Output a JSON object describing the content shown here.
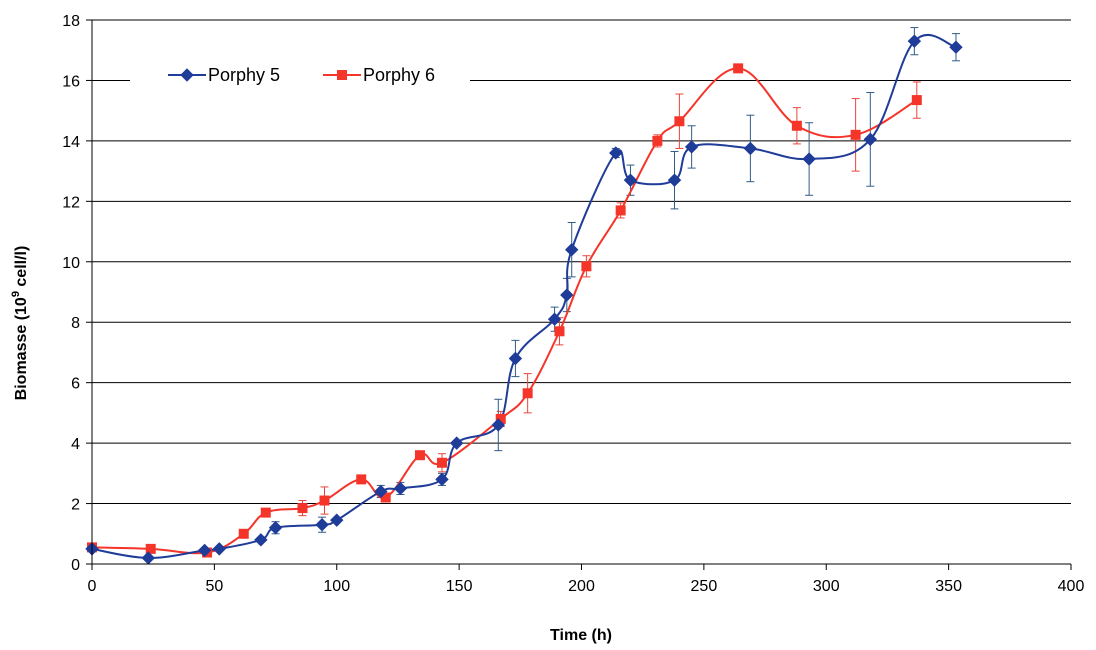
{
  "chart_data": {
    "type": "line",
    "title": "",
    "xlabel": "Time (h)",
    "ylabel_main": "Biomasse (10",
    "ylabel_sup": "9",
    "ylabel_rest": " cell/l)",
    "xlim": [
      0,
      400
    ],
    "ylim": [
      0,
      18
    ],
    "xticks": [
      "0",
      "50",
      "100",
      "150",
      "200",
      "250",
      "300",
      "350",
      "400"
    ],
    "yticks": [
      "0",
      "2",
      "4",
      "6",
      "8",
      "10",
      "12",
      "14",
      "16",
      "18"
    ],
    "grid": "horizontal",
    "legend_position": "top-left",
    "series": [
      {
        "name": "Porphy 5",
        "color": "#1F3C99",
        "marker": "diamond",
        "points": [
          {
            "x": 0,
            "y": 0.5
          },
          {
            "x": 23,
            "y": 0.2
          },
          {
            "x": 46,
            "y": 0.45
          },
          {
            "x": 52,
            "y": 0.5
          },
          {
            "x": 69,
            "y": 0.8
          },
          {
            "x": 75,
            "y": 1.2,
            "err": 0.2
          },
          {
            "x": 94,
            "y": 1.3,
            "err": 0.25
          },
          {
            "x": 100,
            "y": 1.45
          },
          {
            "x": 118,
            "y": 2.4,
            "err": 0.2
          },
          {
            "x": 126,
            "y": 2.5,
            "err": 0.2
          },
          {
            "x": 143,
            "y": 2.8,
            "err": 0.2
          },
          {
            "x": 149,
            "y": 4.0
          },
          {
            "x": 166,
            "y": 4.6,
            "err": 0.85
          },
          {
            "x": 173,
            "y": 6.8,
            "err": 0.6
          },
          {
            "x": 189,
            "y": 8.1,
            "err": 0.4
          },
          {
            "x": 194,
            "y": 8.9,
            "err": 0.55
          },
          {
            "x": 196,
            "y": 10.4,
            "err": 0.9
          },
          {
            "x": 214,
            "y": 13.6,
            "err": 0.15
          },
          {
            "x": 220,
            "y": 12.7,
            "err": 0.5
          },
          {
            "x": 238,
            "y": 12.7,
            "err": 0.95
          },
          {
            "x": 245,
            "y": 13.8,
            "err": 0.7
          },
          {
            "x": 269,
            "y": 13.75,
            "err": 1.1
          },
          {
            "x": 293,
            "y": 13.4,
            "err": 1.2
          },
          {
            "x": 318,
            "y": 14.05,
            "err": 1.55
          },
          {
            "x": 336,
            "y": 17.3,
            "err": 0.45
          },
          {
            "x": 353,
            "y": 17.1,
            "err": 0.45
          }
        ]
      },
      {
        "name": "Porphy 6",
        "color": "#F5352A",
        "marker": "square",
        "points": [
          {
            "x": 0,
            "y": 0.55
          },
          {
            "x": 24,
            "y": 0.5
          },
          {
            "x": 47,
            "y": 0.38
          },
          {
            "x": 62,
            "y": 1.0
          },
          {
            "x": 71,
            "y": 1.7
          },
          {
            "x": 86,
            "y": 1.85,
            "err": 0.25
          },
          {
            "x": 95,
            "y": 2.1,
            "err": 0.45
          },
          {
            "x": 110,
            "y": 2.8
          },
          {
            "x": 120,
            "y": 2.2
          },
          {
            "x": 134,
            "y": 3.6
          },
          {
            "x": 143,
            "y": 3.35,
            "err": 0.3
          },
          {
            "x": 167,
            "y": 4.8,
            "err": 0.25
          },
          {
            "x": 178,
            "y": 5.65,
            "err": 0.65
          },
          {
            "x": 191,
            "y": 7.7,
            "err": 0.45
          },
          {
            "x": 202,
            "y": 9.85,
            "err": 0.35
          },
          {
            "x": 216,
            "y": 11.7,
            "err": 0.25
          },
          {
            "x": 231,
            "y": 14.0,
            "err": 0.2
          },
          {
            "x": 240,
            "y": 14.65,
            "err": 0.9
          },
          {
            "x": 264,
            "y": 16.4
          },
          {
            "x": 288,
            "y": 14.5,
            "err": 0.6
          },
          {
            "x": 312,
            "y": 14.2,
            "err": 1.2
          },
          {
            "x": 337,
            "y": 15.35,
            "err": 0.6
          }
        ]
      }
    ]
  }
}
